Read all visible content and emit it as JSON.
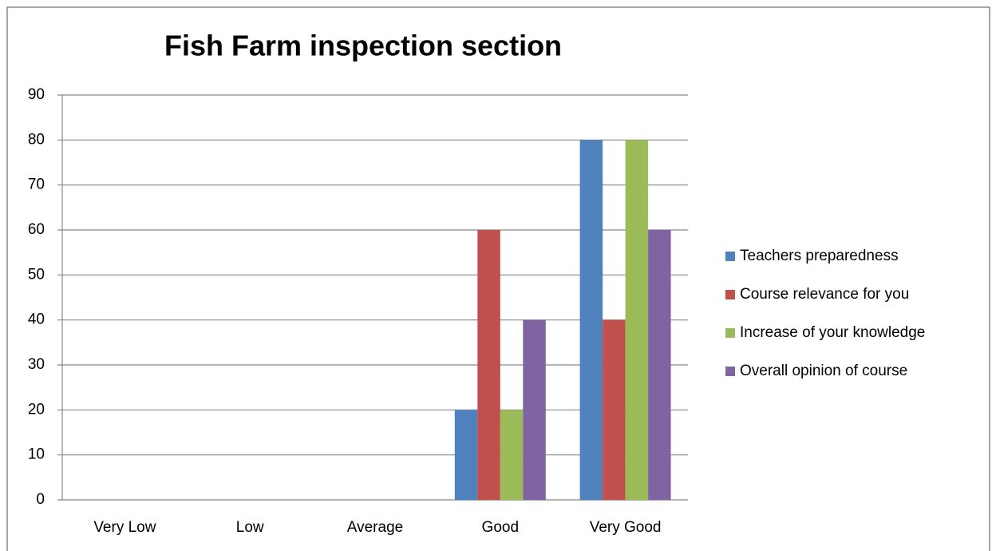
{
  "chart_data": {
    "type": "bar",
    "title": "Fish Farm inspection section",
    "categories": [
      "Very Low",
      "Low",
      "Average",
      "Good",
      "Very Good"
    ],
    "series": [
      {
        "name": "Teachers preparedness",
        "color": "#4f81bd",
        "values": [
          0,
          0,
          0,
          20,
          80
        ]
      },
      {
        "name": "Course relevance for you",
        "color": "#c0504d",
        "values": [
          0,
          0,
          0,
          60,
          40
        ]
      },
      {
        "name": "Increase of your knowledge",
        "color": "#9bbb59",
        "values": [
          0,
          0,
          0,
          20,
          80
        ]
      },
      {
        "name": "Overall opinion of course",
        "color": "#8064a2",
        "values": [
          0,
          0,
          0,
          40,
          60
        ]
      }
    ],
    "ylim": [
      0,
      90
    ],
    "yticks": [
      0,
      10,
      20,
      30,
      40,
      50,
      60,
      70,
      80,
      90
    ],
    "grid": true,
    "legend": "right"
  }
}
